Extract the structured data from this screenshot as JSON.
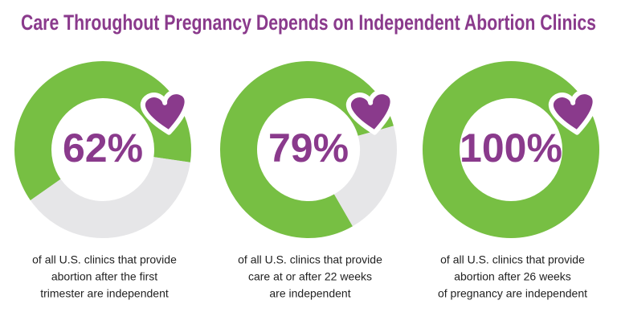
{
  "title": "Care Throughout Pregnancy Depends on Independent Abortion Clinics",
  "chart_data": [
    {
      "type": "donut",
      "values": [
        62,
        38
      ],
      "value_labels": [
        "62%",
        null
      ],
      "colors": [
        "#77bf43",
        "#e6e6e8"
      ],
      "caption": [
        "of all U.S. clinics that provide",
        "abortion after the first",
        "trimester are independent"
      ]
    },
    {
      "type": "donut",
      "values": [
        79,
        21
      ],
      "value_labels": [
        "79%",
        null
      ],
      "colors": [
        "#77bf43",
        "#e6e6e8"
      ],
      "caption": [
        "of all U.S. clinics that provide",
        "care at or after 22 weeks",
        "are independent"
      ]
    },
    {
      "type": "donut",
      "values": [
        100,
        0
      ],
      "value_labels": [
        "100%",
        null
      ],
      "colors": [
        "#77bf43",
        "#e6e6e8"
      ],
      "caption": [
        "of all U.S. clinics that provide",
        "abortion after 26 weeks",
        "of pregnancy are independent"
      ]
    }
  ]
}
